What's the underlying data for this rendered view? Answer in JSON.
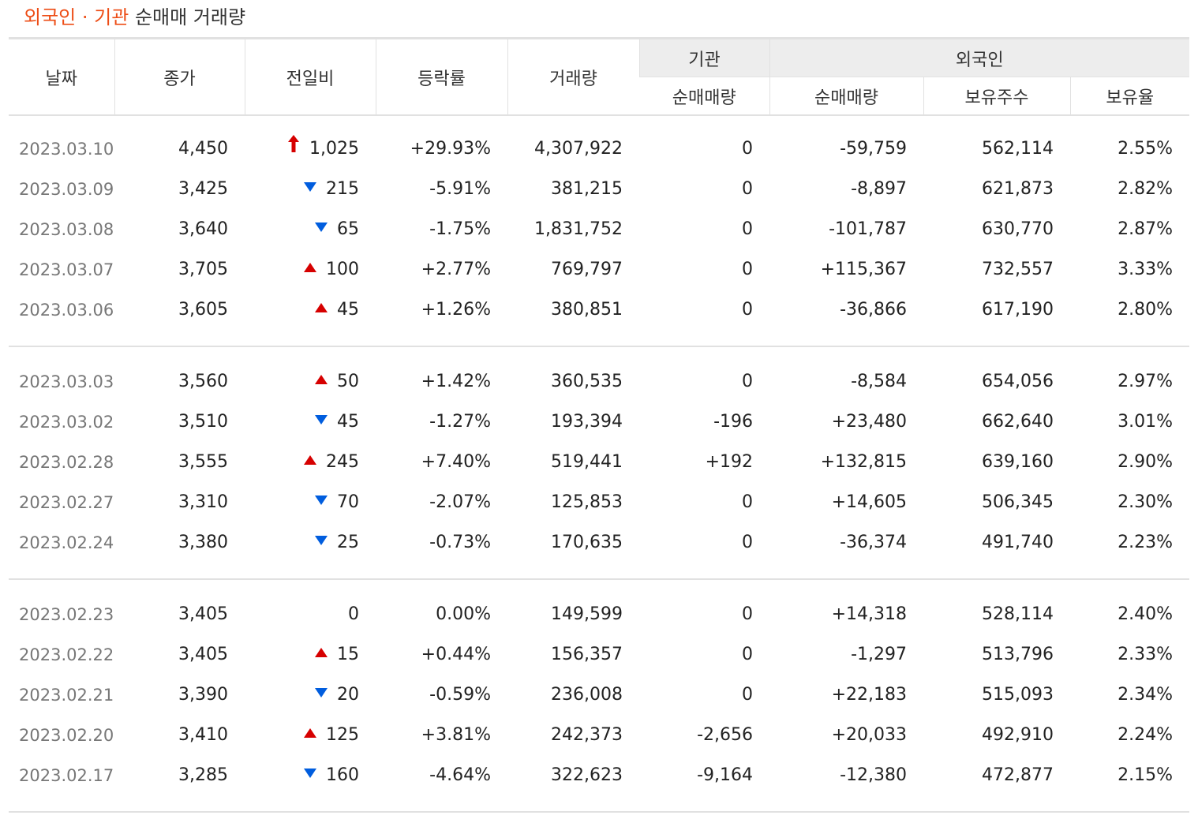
{
  "title": {
    "accent": "외국인 · 기관",
    "rest": "순매매 거래량"
  },
  "header": {
    "date": "날짜",
    "close": "종가",
    "change": "전일비",
    "rate": "등락률",
    "volume": "거래량",
    "institution": "기관",
    "inst_net": "순매매량",
    "foreign": "외국인",
    "foreign_net": "순매매량",
    "holdings": "보유주수",
    "hold_ratio": "보유율"
  },
  "colors": {
    "accent": "#ed4d16",
    "up": "#d60000",
    "down": "#005dde",
    "date": "#777777",
    "header_bg": "#ededed"
  },
  "groups": [
    [
      {
        "date": "2023.03.10",
        "close": "4,450",
        "dir": "limit",
        "change": "1,025",
        "rate": "+29.93%",
        "rate_dir": "up",
        "volume": "4,307,922",
        "inst": "0",
        "inst_dir": "",
        "foreign": "-59,759",
        "foreign_dir": "down",
        "hold": "562,114",
        "ratio": "2.55%"
      },
      {
        "date": "2023.03.09",
        "close": "3,425",
        "dir": "down",
        "change": "215",
        "rate": "-5.91%",
        "rate_dir": "down",
        "volume": "381,215",
        "inst": "0",
        "inst_dir": "",
        "foreign": "-8,897",
        "foreign_dir": "down",
        "hold": "621,873",
        "ratio": "2.82%"
      },
      {
        "date": "2023.03.08",
        "close": "3,640",
        "dir": "down",
        "change": "65",
        "rate": "-1.75%",
        "rate_dir": "down",
        "volume": "1,831,752",
        "inst": "0",
        "inst_dir": "",
        "foreign": "-101,787",
        "foreign_dir": "down",
        "hold": "630,770",
        "ratio": "2.87%"
      },
      {
        "date": "2023.03.07",
        "close": "3,705",
        "dir": "up",
        "change": "100",
        "rate": "+2.77%",
        "rate_dir": "up",
        "volume": "769,797",
        "inst": "0",
        "inst_dir": "",
        "foreign": "+115,367",
        "foreign_dir": "up",
        "hold": "732,557",
        "ratio": "3.33%"
      },
      {
        "date": "2023.03.06",
        "close": "3,605",
        "dir": "up",
        "change": "45",
        "rate": "+1.26%",
        "rate_dir": "up",
        "volume": "380,851",
        "inst": "0",
        "inst_dir": "",
        "foreign": "-36,866",
        "foreign_dir": "down",
        "hold": "617,190",
        "ratio": "2.80%"
      }
    ],
    [
      {
        "date": "2023.03.03",
        "close": "3,560",
        "dir": "up",
        "change": "50",
        "rate": "+1.42%",
        "rate_dir": "up",
        "volume": "360,535",
        "inst": "0",
        "inst_dir": "",
        "foreign": "-8,584",
        "foreign_dir": "down",
        "hold": "654,056",
        "ratio": "2.97%"
      },
      {
        "date": "2023.03.02",
        "close": "3,510",
        "dir": "down",
        "change": "45",
        "rate": "-1.27%",
        "rate_dir": "down",
        "volume": "193,394",
        "inst": "-196",
        "inst_dir": "down",
        "foreign": "+23,480",
        "foreign_dir": "up",
        "hold": "662,640",
        "ratio": "3.01%"
      },
      {
        "date": "2023.02.28",
        "close": "3,555",
        "dir": "up",
        "change": "245",
        "rate": "+7.40%",
        "rate_dir": "up",
        "volume": "519,441",
        "inst": "+192",
        "inst_dir": "up",
        "foreign": "+132,815",
        "foreign_dir": "up",
        "hold": "639,160",
        "ratio": "2.90%"
      },
      {
        "date": "2023.02.27",
        "close": "3,310",
        "dir": "down",
        "change": "70",
        "rate": "-2.07%",
        "rate_dir": "down",
        "volume": "125,853",
        "inst": "0",
        "inst_dir": "",
        "foreign": "+14,605",
        "foreign_dir": "up",
        "hold": "506,345",
        "ratio": "2.30%"
      },
      {
        "date": "2023.02.24",
        "close": "3,380",
        "dir": "down",
        "change": "25",
        "rate": "-0.73%",
        "rate_dir": "down",
        "volume": "170,635",
        "inst": "0",
        "inst_dir": "",
        "foreign": "-36,374",
        "foreign_dir": "down",
        "hold": "491,740",
        "ratio": "2.23%"
      }
    ],
    [
      {
        "date": "2023.02.23",
        "close": "3,405",
        "dir": "none",
        "change": "0",
        "rate": "0.00%",
        "rate_dir": "",
        "volume": "149,599",
        "inst": "0",
        "inst_dir": "",
        "foreign": "+14,318",
        "foreign_dir": "up",
        "hold": "528,114",
        "ratio": "2.40%"
      },
      {
        "date": "2023.02.22",
        "close": "3,405",
        "dir": "up",
        "change": "15",
        "rate": "+0.44%",
        "rate_dir": "up",
        "volume": "156,357",
        "inst": "0",
        "inst_dir": "",
        "foreign": "-1,297",
        "foreign_dir": "down",
        "hold": "513,796",
        "ratio": "2.33%"
      },
      {
        "date": "2023.02.21",
        "close": "3,390",
        "dir": "down",
        "change": "20",
        "rate": "-0.59%",
        "rate_dir": "down",
        "volume": "236,008",
        "inst": "0",
        "inst_dir": "",
        "foreign": "+22,183",
        "foreign_dir": "up",
        "hold": "515,093",
        "ratio": "2.34%"
      },
      {
        "date": "2023.02.20",
        "close": "3,410",
        "dir": "up",
        "change": "125",
        "rate": "+3.81%",
        "rate_dir": "up",
        "volume": "242,373",
        "inst": "-2,656",
        "inst_dir": "down",
        "foreign": "+20,033",
        "foreign_dir": "up",
        "hold": "492,910",
        "ratio": "2.24%"
      },
      {
        "date": "2023.02.17",
        "close": "3,285",
        "dir": "down",
        "change": "160",
        "rate": "-4.64%",
        "rate_dir": "down",
        "volume": "322,623",
        "inst": "-9,164",
        "inst_dir": "down",
        "foreign": "-12,380",
        "foreign_dir": "down",
        "hold": "472,877",
        "ratio": "2.15%"
      }
    ]
  ]
}
